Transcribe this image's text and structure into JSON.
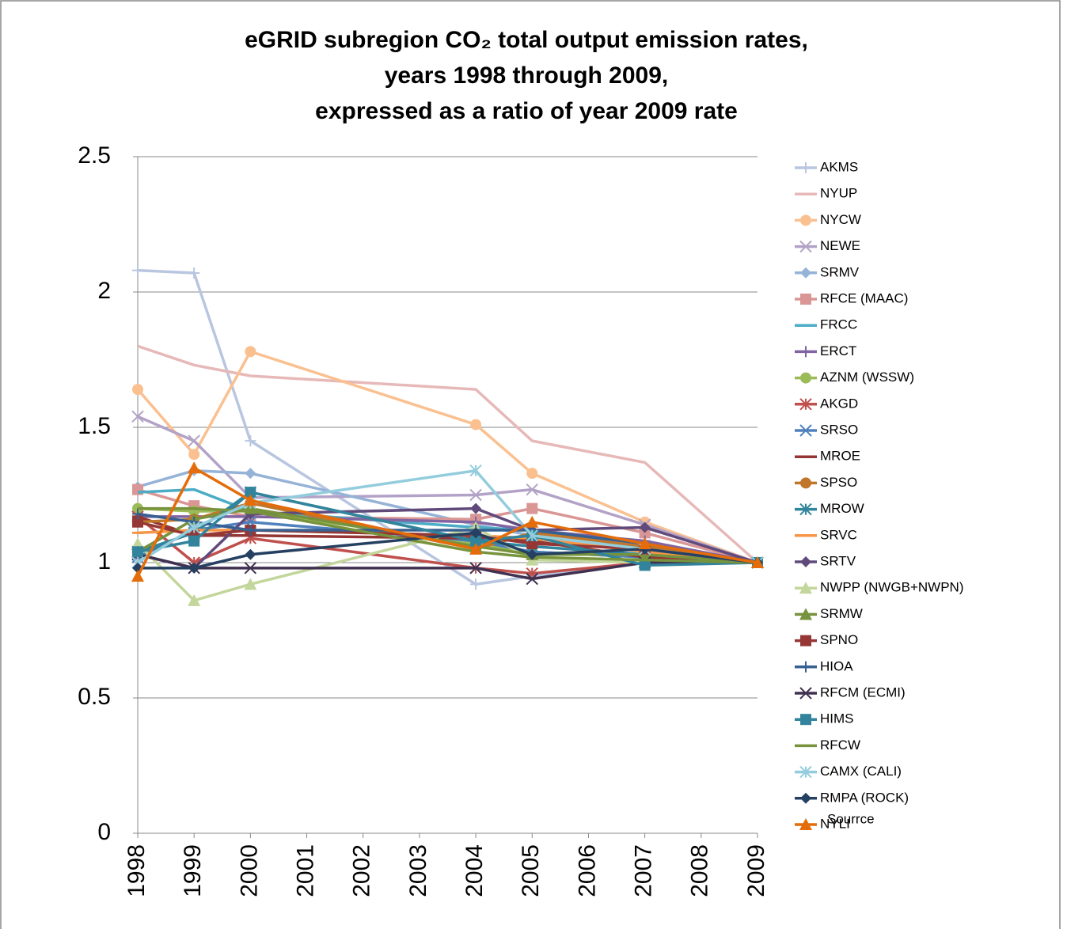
{
  "chart_data": {
    "type": "line",
    "title": [
      "eGRID subregion CO₂ total output emission rates,",
      "years 1998 through 2009,",
      "expressed as a ratio of year 2009 rate"
    ],
    "annotation": "Sourrce",
    "x": [
      1998,
      1999,
      2000,
      2004,
      2005,
      2007,
      2009
    ],
    "xlim": [
      1998,
      2009
    ],
    "xticks": [
      1998,
      1999,
      2000,
      2001,
      2002,
      2003,
      2004,
      2005,
      2006,
      2007,
      2008,
      2009
    ],
    "ylim": [
      0,
      2.5
    ],
    "yticks": [
      0,
      0.5,
      1,
      1.5,
      2,
      2.5
    ],
    "grid": true,
    "legend": "right",
    "series": [
      {
        "name": "AKMS",
        "color": "#b9c6e0",
        "marker": "plus",
        "values": [
          2.08,
          2.07,
          1.45,
          0.92,
          0.95,
          1.0,
          1.0
        ]
      },
      {
        "name": "NYUP",
        "color": "#e6b9b8",
        "marker": "none",
        "values": [
          1.8,
          1.73,
          1.69,
          1.64,
          1.45,
          1.37,
          1.0
        ]
      },
      {
        "name": "NYCW",
        "color": "#fac090",
        "marker": "circle",
        "values": [
          1.64,
          1.4,
          1.78,
          1.51,
          1.33,
          1.15,
          1.0
        ]
      },
      {
        "name": "NEWE",
        "color": "#b3a2c7",
        "marker": "x",
        "values": [
          1.54,
          1.45,
          1.24,
          1.25,
          1.27,
          1.14,
          1.0
        ]
      },
      {
        "name": "SRMV",
        "color": "#95b3d7",
        "marker": "diamond",
        "values": [
          1.28,
          1.34,
          1.33,
          1.14,
          1.1,
          1.05,
          1.0
        ]
      },
      {
        "name": "RFCE (MAAC)",
        "color": "#d99694",
        "marker": "square",
        "values": [
          1.27,
          1.21,
          1.17,
          1.16,
          1.2,
          1.11,
          1.0
        ]
      },
      {
        "name": "FRCC",
        "color": "#4bacc6",
        "marker": "none",
        "values": [
          1.26,
          1.27,
          1.19,
          1.13,
          1.12,
          1.05,
          1.0
        ]
      },
      {
        "name": "ERCT",
        "color": "#8064a2",
        "marker": "plus",
        "values": [
          1.17,
          1.17,
          1.17,
          1.15,
          1.12,
          1.08,
          1.0
        ]
      },
      {
        "name": "AZNM (WSSW)",
        "color": "#9bbb59",
        "marker": "circle",
        "values": [
          1.2,
          1.19,
          1.19,
          1.07,
          1.04,
          1.02,
          1.0
        ]
      },
      {
        "name": "AKGD",
        "color": "#c0504d",
        "marker": "star",
        "values": [
          1.17,
          1.0,
          1.09,
          0.98,
          0.96,
          1.0,
          1.0
        ]
      },
      {
        "name": "SRSO",
        "color": "#4f81bd",
        "marker": "x",
        "values": [
          1.02,
          1.12,
          1.15,
          1.08,
          1.04,
          1.02,
          1.0
        ]
      },
      {
        "name": "MROE",
        "color": "#943634",
        "marker": "dash",
        "values": [
          1.17,
          1.1,
          1.1,
          1.09,
          1.08,
          1.02,
          1.0
        ]
      },
      {
        "name": "SPSO",
        "color": "#c0762b",
        "marker": "circle",
        "values": [
          1.15,
          1.16,
          1.22,
          1.05,
          1.11,
          1.06,
          1.0
        ]
      },
      {
        "name": "MROW",
        "color": "#31859c",
        "marker": "star",
        "values": [
          1.04,
          1.11,
          1.26,
          1.08,
          1.06,
          1.03,
          1.0
        ]
      },
      {
        "name": "SRVC",
        "color": "#f79646",
        "marker": "dash",
        "values": [
          1.11,
          1.12,
          1.12,
          1.1,
          1.09,
          1.04,
          1.0
        ]
      },
      {
        "name": "SRTV",
        "color": "#604a7b",
        "marker": "diamond",
        "values": [
          1.03,
          0.98,
          1.18,
          1.2,
          1.12,
          1.13,
          1.0
        ]
      },
      {
        "name": "NWPP (NWGB+NWPN)",
        "color": "#c3d69b",
        "marker": "triangle",
        "values": [
          1.07,
          0.86,
          0.92,
          1.13,
          1.01,
          1.0,
          1.0
        ]
      },
      {
        "name": "SRMW",
        "color": "#76923c",
        "marker": "triangle",
        "values": [
          1.04,
          1.16,
          1.2,
          1.06,
          1.03,
          1.03,
          1.0
        ]
      },
      {
        "name": "SPNO",
        "color": "#953735",
        "marker": "square",
        "values": [
          1.15,
          1.1,
          1.12,
          1.1,
          1.07,
          1.05,
          1.0
        ]
      },
      {
        "name": "HIOA",
        "color": "#376092",
        "marker": "plus",
        "values": [
          1.18,
          1.15,
          1.12,
          1.12,
          1.12,
          1.07,
          1.0
        ]
      },
      {
        "name": "RFCM (ECMI)",
        "color": "#403151",
        "marker": "x",
        "values": [
          1.03,
          0.98,
          0.98,
          0.98,
          0.94,
          1.0,
          1.0
        ]
      },
      {
        "name": "HIMS",
        "color": "#31849b",
        "marker": "square",
        "values": [
          1.04,
          1.08,
          1.26,
          1.08,
          1.1,
          0.99,
          1.0
        ]
      },
      {
        "name": "RFCW",
        "color": "#77933c",
        "marker": "none",
        "values": [
          1.2,
          1.2,
          1.19,
          1.04,
          1.02,
          1.01,
          1.0
        ]
      },
      {
        "name": "CAMX (CALI)",
        "color": "#93cddd",
        "marker": "star",
        "values": [
          1.0,
          1.13,
          1.22,
          1.34,
          1.1,
          1.05,
          1.0
        ]
      },
      {
        "name": "RMPA (ROCK)",
        "color": "#254061",
        "marker": "diamond",
        "values": [
          0.98,
          0.98,
          1.03,
          1.11,
          1.03,
          1.05,
          1.0
        ]
      },
      {
        "name": "NYLI",
        "color": "#e46c0a",
        "marker": "triangle",
        "values": [
          0.95,
          1.35,
          1.23,
          1.05,
          1.15,
          1.07,
          1.0
        ]
      }
    ]
  }
}
